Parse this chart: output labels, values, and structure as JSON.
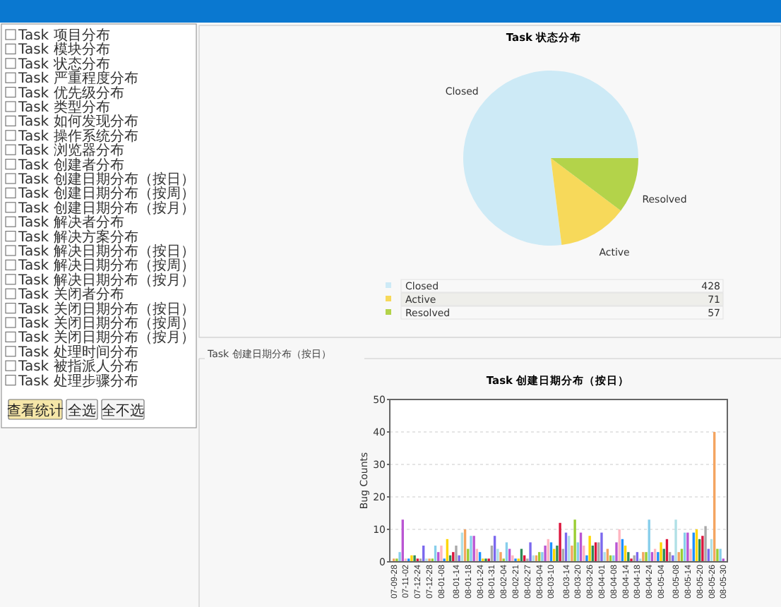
{
  "chart_data": [
    {
      "type": "pie",
      "title": "Task 状态分布",
      "categories": [
        "Closed",
        "Active",
        "Resolved"
      ],
      "values": [
        428,
        71,
        57
      ],
      "colors": [
        "#cdeaf6",
        "#f7d95a",
        "#b3d34a"
      ],
      "data_labels": true,
      "legend": "bottom"
    },
    {
      "type": "bar",
      "title": "Task 创建日期分布（按日）",
      "annotations": [
        "Task 创建日期分布（按日）"
      ],
      "ylabel": "Bug Counts",
      "ylim": [
        0,
        50
      ],
      "yticks": [
        0,
        10,
        20,
        30,
        40,
        50
      ],
      "grid": "y",
      "categories": [
        "07-09-28",
        null,
        null,
        null,
        "07-11-02",
        null,
        null,
        null,
        "07-12-24",
        null,
        null,
        null,
        "07-12-28",
        null,
        null,
        null,
        "08-01-08",
        null,
        null,
        null,
        null,
        "08-01-14",
        null,
        null,
        null,
        "08-01-18",
        null,
        null,
        null,
        "08-01-24",
        null,
        null,
        null,
        "08-01-31",
        null,
        null,
        null,
        "08-02-04",
        null,
        null,
        null,
        "08-02-21",
        null,
        null,
        null,
        "08-02-27",
        null,
        null,
        null,
        "08-03-04",
        null,
        null,
        null,
        "08-03-10",
        null,
        null,
        null,
        null,
        "08-03-14",
        null,
        null,
        null,
        "08-03-20",
        null,
        null,
        null,
        "08-03-26",
        null,
        null,
        null,
        "08-04-01",
        null,
        null,
        null,
        "08-04-08",
        null,
        null,
        null,
        "08-04-14",
        null,
        null,
        null,
        "08-04-18",
        null,
        null,
        null,
        "08-04-24",
        null,
        null,
        null,
        "08-05-04",
        null,
        null,
        null,
        null,
        "08-05-08",
        null,
        null,
        null,
        "08-05-14",
        null,
        null,
        null,
        "08-05-20",
        null,
        null,
        null,
        "08-05-26",
        null,
        null,
        null,
        "08-05-30"
      ],
      "values": [
        1,
        1,
        3,
        13,
        1,
        1,
        2,
        2,
        1,
        1,
        5,
        1,
        1,
        1,
        5,
        3,
        5,
        1,
        7,
        2,
        3,
        5,
        2,
        9,
        10,
        4,
        8,
        8,
        4,
        3,
        1,
        1,
        1,
        5,
        8,
        4,
        3,
        1,
        6,
        4,
        2,
        1,
        1,
        4,
        2,
        1,
        6,
        2,
        2,
        3,
        3,
        5,
        7,
        6,
        4,
        5,
        12,
        4,
        9,
        8,
        5,
        13,
        6,
        9,
        5,
        2,
        8,
        5,
        6,
        6,
        9,
        3,
        4,
        2,
        2,
        6,
        10,
        7,
        5,
        3,
        1,
        2,
        3,
        1,
        3,
        3,
        13,
        3,
        4,
        3,
        6,
        4,
        7,
        3,
        2,
        13,
        3,
        4,
        9,
        9,
        4,
        9,
        10,
        7,
        8,
        11,
        4,
        7,
        40,
        4,
        4,
        1
      ],
      "colors": [
        "#f4a460",
        "#9acd32",
        "#87ceeb",
        "#ba55d3",
        "#ffb6c1",
        "#1e90ff",
        "#ffd700",
        "#2e8b57",
        "#dc143c",
        "#a9a9a9",
        "#7b68ee",
        "#b0e0e6",
        "#f4a460",
        "#9acd32",
        "#87ceeb",
        "#ba55d3",
        "#ffb6c1",
        "#1e90ff",
        "#ffd700",
        "#2e8b57",
        "#dc143c",
        "#a9a9a9",
        "#7b68ee",
        "#b0e0e6",
        "#f4a460",
        "#9acd32",
        "#87ceeb",
        "#ba55d3",
        "#ffb6c1",
        "#1e90ff",
        "#ffd700",
        "#2e8b57",
        "#dc143c",
        "#a9a9a9",
        "#7b68ee",
        "#b0e0e6",
        "#f4a460",
        "#9acd32",
        "#87ceeb",
        "#ba55d3",
        "#ffb6c1",
        "#1e90ff",
        "#ffd700",
        "#2e8b57",
        "#dc143c",
        "#a9a9a9",
        "#7b68ee",
        "#b0e0e6",
        "#f4a460",
        "#9acd32",
        "#87ceeb",
        "#ba55d3",
        "#ffb6c1",
        "#1e90ff",
        "#ffd700",
        "#2e8b57",
        "#dc143c",
        "#a9a9a9",
        "#7b68ee",
        "#b0e0e6",
        "#f4a460",
        "#9acd32",
        "#87ceeb",
        "#ba55d3",
        "#ffb6c1",
        "#1e90ff",
        "#ffd700",
        "#2e8b57",
        "#dc143c",
        "#a9a9a9",
        "#7b68ee",
        "#b0e0e6",
        "#f4a460",
        "#9acd32",
        "#87ceeb",
        "#ba55d3",
        "#ffb6c1",
        "#1e90ff",
        "#ffd700",
        "#2e8b57",
        "#dc143c",
        "#a9a9a9",
        "#7b68ee",
        "#b0e0e6",
        "#f4a460",
        "#9acd32",
        "#87ceeb",
        "#ba55d3",
        "#ffb6c1",
        "#1e90ff",
        "#ffd700",
        "#2e8b57",
        "#dc143c",
        "#a9a9a9",
        "#7b68ee",
        "#b0e0e6",
        "#f4a460",
        "#9acd32",
        "#87ceeb",
        "#ba55d3",
        "#ffb6c1",
        "#1e90ff",
        "#ffd700",
        "#2e8b57",
        "#dc143c",
        "#a9a9a9",
        "#7b68ee",
        "#b0e0e6",
        "#f4a460",
        "#9acd32",
        "#87ceeb",
        "#ba55d3"
      ]
    },
    {
      "type": "other",
      "annotations": [
        "Task 项目分布",
        "Task 模块分布",
        "Task 状态分布",
        "Task 严重程度分布",
        "Task 优先级分布",
        "Task 类型分布",
        "Task 如何发现分布",
        "Task 操作系统分布",
        "Task 浏览器分布",
        "Task 创建者分布",
        "Task 创建日期分布（按日）",
        "Task 创建日期分布（按周）",
        "Task 创建日期分布（按月）",
        "Task 解决者分布",
        "Task 解决方案分布",
        "Task 解决日期分布（按日）",
        "Task 解决日期分布（按周）",
        "Task 解决日期分布（按月）",
        "Task 关闭者分布",
        "Task 关闭日期分布（按日）",
        "Task 关闭日期分布（按周）",
        "Task 关闭日期分布（按月）",
        "Task 处理时间分布",
        "Task 被指派人分布",
        "Task 处理步骤分布",
        "查看统计",
        "全选",
        "全不选"
      ]
    }
  ]
}
